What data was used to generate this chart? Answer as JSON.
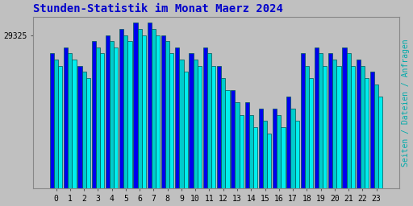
{
  "title": "Stunden-Statistik im Monat Maerz 2024",
  "title_color": "#0000CC",
  "ylabel": "Seiten / Dateien / Anfragen",
  "ylabel_color": "#00AAAA",
  "background_color": "#C0C0C0",
  "plot_bg_color": "#C0C0C0",
  "ytick_label": "29325",
  "hours": [
    0,
    1,
    2,
    3,
    4,
    5,
    6,
    7,
    8,
    9,
    10,
    11,
    12,
    13,
    14,
    15,
    16,
    17,
    18,
    19,
    20,
    21,
    22,
    23
  ],
  "bar1_values": [
    97,
    98,
    95,
    99,
    100,
    101,
    102,
    102,
    100,
    98,
    97,
    98,
    95,
    91,
    89,
    88,
    88,
    90,
    97,
    98,
    97,
    98,
    96,
    94
  ],
  "bar2_values": [
    96,
    97,
    94,
    98,
    99,
    100,
    101,
    101,
    99,
    96,
    96,
    97,
    93,
    89,
    87,
    86,
    87,
    88,
    95,
    97,
    96,
    97,
    95,
    92
  ],
  "bar3_values": [
    95,
    96,
    93,
    97,
    98,
    99,
    100,
    100,
    97,
    94,
    95,
    95,
    91,
    87,
    85,
    84,
    85,
    86,
    93,
    95,
    95,
    95,
    93,
    90
  ],
  "bar1_color": "#0000EE",
  "bar2_color": "#00CCCC",
  "bar3_color": "#00EEEE",
  "bar_edge_color": "#005555",
  "ylim_min": 75,
  "ylim_max": 103,
  "ytick_val": 100,
  "ylabel_size": 7,
  "title_size": 10
}
